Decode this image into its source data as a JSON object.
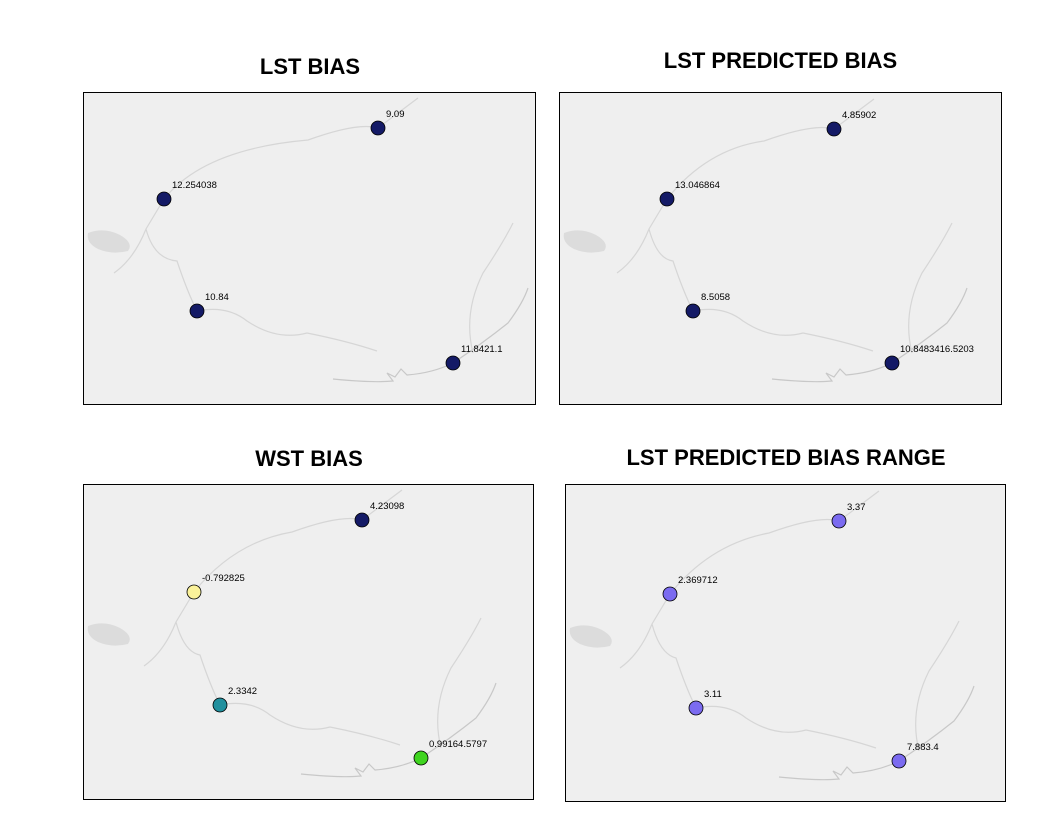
{
  "panels": [
    {
      "title": "LST BIAS",
      "points": [
        {
          "site": "north",
          "label": "9.09",
          "color": "#141a66"
        },
        {
          "site": "west",
          "label": "12.254038",
          "color": "#141a66"
        },
        {
          "site": "southwest",
          "label": "10.84",
          "color": "#141a66"
        },
        {
          "site": "southeast",
          "label": "11.8421.1",
          "color": "#141a66"
        }
      ]
    },
    {
      "title": "LST PREDICTED BIAS",
      "points": [
        {
          "site": "north",
          "label": "4.85902",
          "color": "#141a66"
        },
        {
          "site": "west",
          "label": "13.046864",
          "color": "#141a66"
        },
        {
          "site": "southwest",
          "label": "8.5058",
          "color": "#141a66"
        },
        {
          "site": "southeast",
          "label": "10.8483416.5203",
          "color": "#141a66"
        }
      ]
    },
    {
      "title": "WST BIAS",
      "points": [
        {
          "site": "north",
          "label": "4.23098",
          "color": "#141a66"
        },
        {
          "site": "west",
          "label": "-0.792825",
          "color": "#fbf29a"
        },
        {
          "site": "southwest",
          "label": "2.3342",
          "color": "#21909e"
        },
        {
          "site": "southeast",
          "label": "0.99164.5797",
          "color": "#3fd41f"
        }
      ]
    },
    {
      "title": "LST PREDICTED BIAS RANGE",
      "points": [
        {
          "site": "north",
          "label": "3.37",
          "color": "#7b6bf0"
        },
        {
          "site": "west",
          "label": "2.369712",
          "color": "#7b6bf0"
        },
        {
          "site": "southwest",
          "label": "3.11",
          "color": "#7b6bf0"
        },
        {
          "site": "southeast",
          "label": "7.883.4",
          "color": "#7b6bf0"
        }
      ]
    }
  ]
}
